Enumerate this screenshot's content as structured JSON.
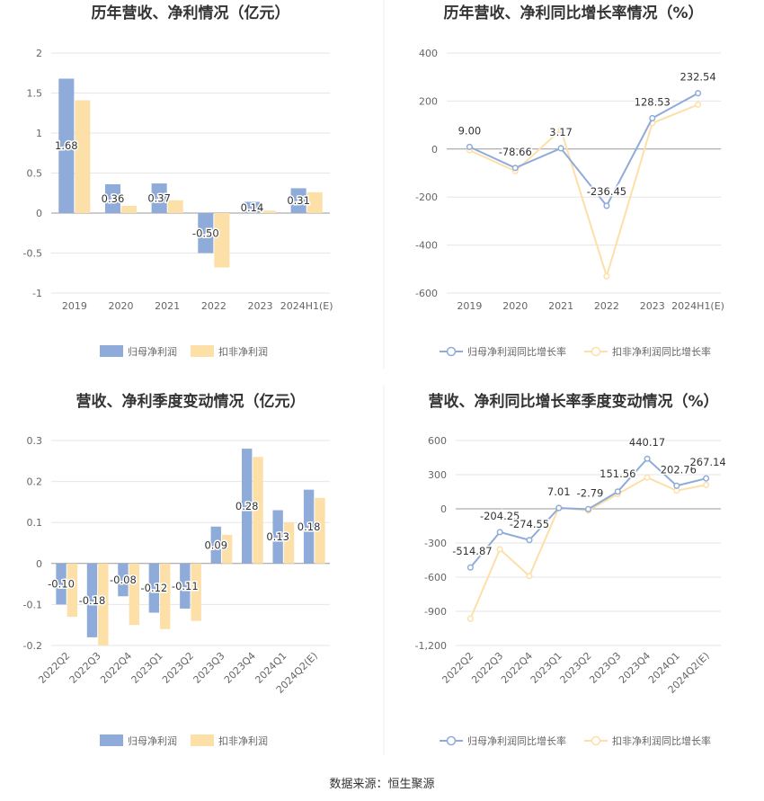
{
  "colors": {
    "primary": "#8eabd9",
    "secondary": "#fddfa8",
    "grid": "#e6e6e6",
    "axis": "#999999"
  },
  "source_label": "数据来源：恒生聚源",
  "chart_data": [
    {
      "id": "c1",
      "type": "bar",
      "title": "历年营收、净利情况（亿元）",
      "categories": [
        "2019",
        "2020",
        "2021",
        "2022",
        "2023",
        "2024H1(E)"
      ],
      "series": [
        {
          "name": "归母净利润",
          "values": [
            1.68,
            0.36,
            0.37,
            -0.5,
            0.14,
            0.31
          ]
        },
        {
          "name": "扣非净利润",
          "values": [
            1.41,
            0.09,
            0.16,
            -0.68,
            0.03,
            0.26
          ]
        }
      ],
      "data_labels": [
        "1.68",
        "0.36",
        "0.37",
        "-0.50",
        "0.14",
        "0.31"
      ],
      "yticks": [
        "2",
        "1.5",
        "1",
        "0.5",
        "0",
        "-0.5",
        "-1"
      ],
      "ylim": [
        -1,
        2
      ],
      "xlabel": "",
      "ylabel": ""
    },
    {
      "id": "c2",
      "type": "line",
      "title": "历年营收、净利同比增长率情况（%）",
      "categories": [
        "2019",
        "2020",
        "2021",
        "2022",
        "2023",
        "2024H1(E)"
      ],
      "series": [
        {
          "name": "归母净利润同比增长率",
          "values": [
            9.0,
            -78.66,
            3.17,
            -236.45,
            128.53,
            232.54
          ]
        },
        {
          "name": "扣非净利润同比增长率",
          "values": [
            -5,
            -92,
            80,
            -530,
            108,
            185
          ]
        }
      ],
      "data_labels": [
        "9.00",
        "-78.66",
        "3.17",
        "-236.45",
        "128.53",
        "232.54"
      ],
      "yticks": [
        "400",
        "200",
        "0",
        "-200",
        "-400",
        "-600"
      ],
      "ylim": [
        -600,
        400
      ],
      "xlabel": "",
      "ylabel": ""
    },
    {
      "id": "c3",
      "type": "bar",
      "title": "营收、净利季度变动情况（亿元）",
      "categories": [
        "2022Q2",
        "2022Q3",
        "2022Q4",
        "2023Q1",
        "2023Q2",
        "2023Q3",
        "2023Q4",
        "2024Q1",
        "2024Q2(E)"
      ],
      "series": [
        {
          "name": "归母净利润",
          "values": [
            -0.1,
            -0.18,
            -0.08,
            -0.12,
            -0.11,
            0.09,
            0.28,
            0.13,
            0.18
          ]
        },
        {
          "name": "扣非净利润",
          "values": [
            -0.13,
            -0.2,
            -0.15,
            -0.16,
            -0.14,
            0.07,
            0.26,
            0.1,
            0.16
          ]
        }
      ],
      "data_labels": [
        "-0.10",
        "-0.18",
        "-0.08",
        "-0.12",
        "-0.11",
        "0.09",
        "0.28",
        "0.13",
        "0.18"
      ],
      "yticks": [
        "0.3",
        "0.2",
        "0.1",
        "0",
        "-0.1",
        "-0.2"
      ],
      "ylim": [
        -0.2,
        0.3
      ],
      "xlabel": "",
      "ylabel": ""
    },
    {
      "id": "c4",
      "type": "line",
      "title": "营收、净利同比增长率季度变动情况（%）",
      "categories": [
        "2022Q2",
        "2022Q3",
        "2022Q4",
        "2023Q1",
        "2023Q2",
        "2023Q3",
        "2023Q4",
        "2024Q1",
        "2024Q2(E)"
      ],
      "series": [
        {
          "name": "归母净利润同比增长率",
          "values": [
            -514.87,
            -204.25,
            -274.55,
            7.01,
            -2.79,
            151.56,
            440.17,
            202.76,
            267.14
          ]
        },
        {
          "name": "扣非净利润同比增长率",
          "values": [
            -965,
            -355,
            -590,
            10,
            -15,
            130,
            275,
            160,
            210
          ]
        }
      ],
      "data_labels": [
        "-514.87",
        "-204.25",
        "-274.55",
        "7.01",
        "-2.79",
        "151.56",
        "440.17",
        "202.76",
        "267.14"
      ],
      "yticks": [
        "600",
        "300",
        "0",
        "-300",
        "-600",
        "-900",
        "-1,200"
      ],
      "ylim": [
        -1200,
        600
      ],
      "xlabel": "",
      "ylabel": ""
    }
  ]
}
